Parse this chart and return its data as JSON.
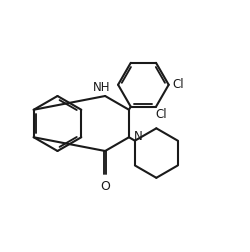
{
  "background_color": "#ffffff",
  "line_color": "#1a1a1a",
  "line_width": 1.5,
  "font_size": 8.5,
  "xlim": [
    0,
    10
  ],
  "ylim": [
    0,
    10
  ],
  "figsize": [
    2.5,
    2.52
  ],
  "dpi": 100
}
